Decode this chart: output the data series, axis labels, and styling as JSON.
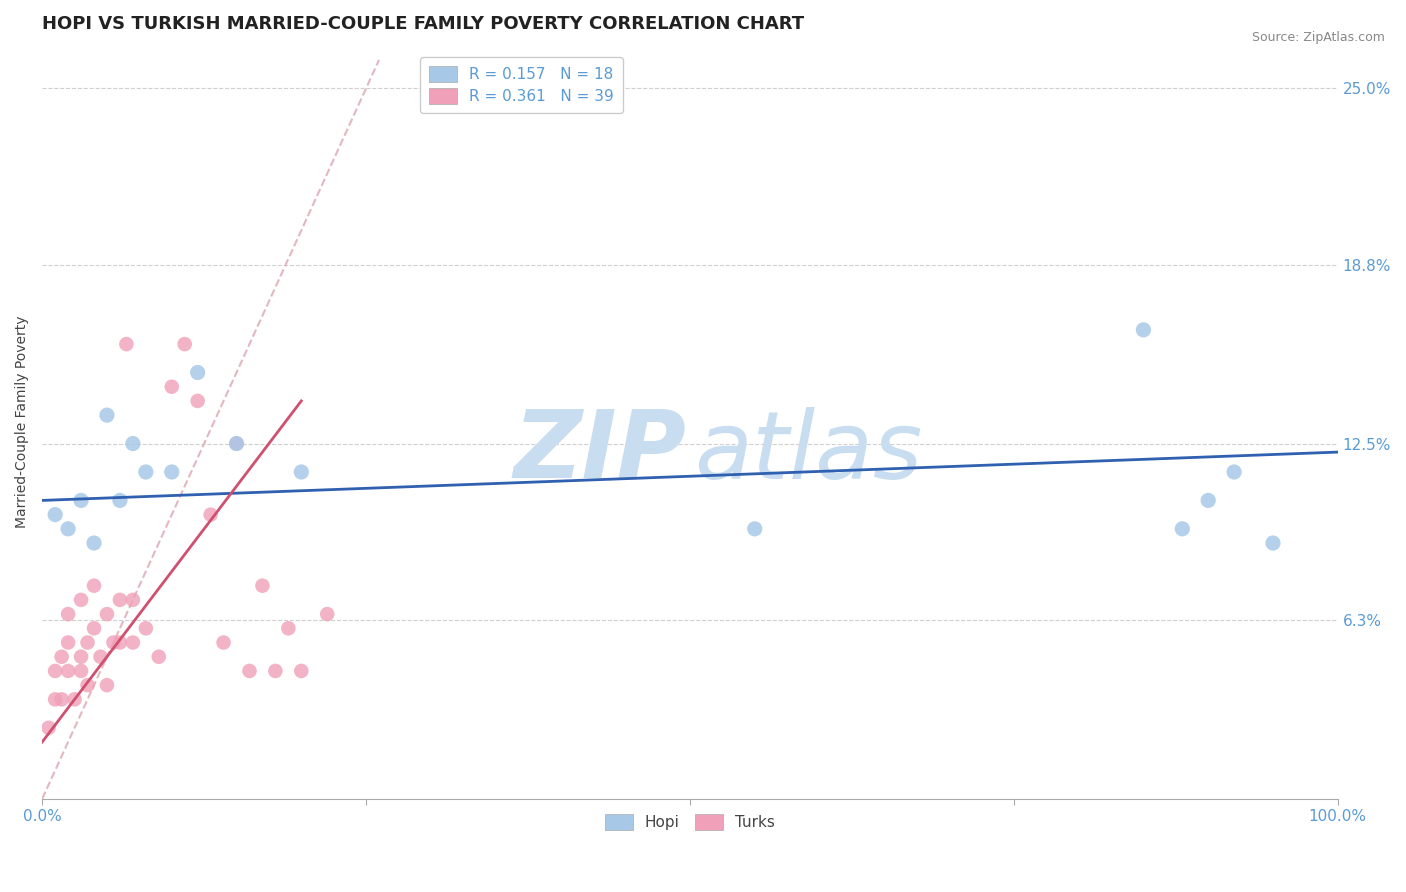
{
  "title": "HOPI VS TURKISH MARRIED-COUPLE FAMILY POVERTY CORRELATION CHART",
  "source": "Source: ZipAtlas.com",
  "ylabel": "Married-Couple Family Poverty",
  "xlim": [
    0,
    100
  ],
  "ylim": [
    0,
    26.5
  ],
  "ytick_vals": [
    6.3,
    12.5,
    18.8,
    25.0
  ],
  "ytick_labels": [
    "6.3%",
    "12.5%",
    "18.8%",
    "25.0%"
  ],
  "xtick_vals": [
    0,
    25,
    50,
    75,
    100
  ],
  "xtick_labels": [
    "0.0%",
    "",
    "",
    "",
    "100.0%"
  ],
  "hopi_color": "#a8c8e8",
  "turks_color": "#f0a0b8",
  "hopi_R": 0.157,
  "hopi_N": 18,
  "turks_R": 0.361,
  "turks_N": 39,
  "background_color": "#ffffff",
  "grid_color": "#d0d0d0",
  "hopi_scatter_x": [
    1,
    2,
    3,
    4,
    5,
    6,
    7,
    8,
    10,
    12,
    15,
    20,
    55,
    85,
    88,
    90,
    92,
    95
  ],
  "hopi_scatter_y": [
    10.0,
    9.5,
    10.5,
    9.0,
    13.5,
    10.5,
    12.5,
    11.5,
    11.5,
    15.0,
    12.5,
    11.5,
    9.5,
    16.5,
    9.5,
    10.5,
    11.5,
    9.0
  ],
  "turks_scatter_x": [
    0.5,
    1,
    1,
    1.5,
    1.5,
    2,
    2,
    2,
    2.5,
    3,
    3,
    3,
    3.5,
    3.5,
    4,
    4,
    4.5,
    5,
    5,
    5.5,
    6,
    6,
    6.5,
    7,
    7,
    8,
    9,
    10,
    11,
    12,
    13,
    14,
    15,
    16,
    17,
    18,
    19,
    20,
    22
  ],
  "turks_scatter_y": [
    2.5,
    3.5,
    4.5,
    3.5,
    5.0,
    4.5,
    5.5,
    6.5,
    3.5,
    4.5,
    5.0,
    7.0,
    4.0,
    5.5,
    6.0,
    7.5,
    5.0,
    4.0,
    6.5,
    5.5,
    5.5,
    7.0,
    16.0,
    5.5,
    7.0,
    6.0,
    5.0,
    14.5,
    16.0,
    14.0,
    10.0,
    5.5,
    12.5,
    4.5,
    7.5,
    4.5,
    6.0,
    4.5,
    6.5
  ],
  "hopi_line_x": [
    0,
    100
  ],
  "hopi_line_y": [
    10.5,
    12.2
  ],
  "turks_line_x": [
    0,
    20
  ],
  "turks_line_y": [
    2.0,
    14.0
  ],
  "ref_line_x": [
    0,
    26
  ],
  "ref_line_y": [
    0,
    26
  ],
  "hopi_line_color": "#3060b0",
  "turks_line_color": "#d05070",
  "ref_line_color": "#e0b0b8",
  "title_fontsize": 13,
  "label_fontsize": 10,
  "tick_fontsize": 11,
  "legend_fontsize": 11,
  "source_fontsize": 9,
  "watermark_zip_color": "#c8ddf0",
  "watermark_atlas_color": "#c8ddf0"
}
